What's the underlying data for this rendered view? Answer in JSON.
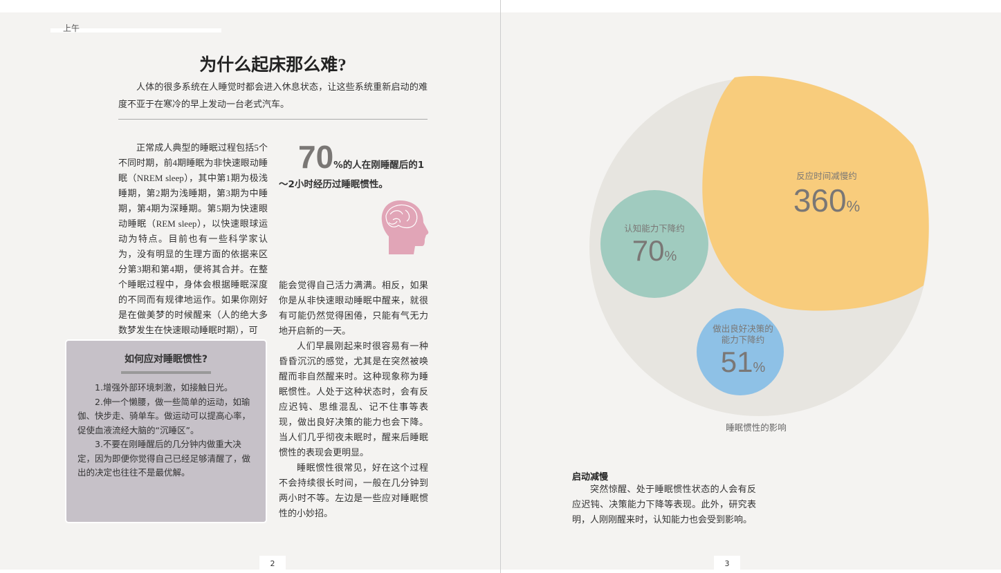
{
  "header": {
    "section": "上午"
  },
  "left_page": {
    "title": "为什么起床那么难?",
    "intro": "人体的很多系统在人睡觉时都会进入休息状态，让这些系统重新启动的难度不亚于在寒冷的早上发动一台老式汽车。",
    "column1": "正常成人典型的睡眠过程包括5个不同时期，前4期睡眠为非快速眼动睡眠（NREM sleep），其中第1期为极浅睡期，第2期为浅睡期，第3期为中睡期，第4期为深睡期。第5期为快速眼动睡眠（REM sleep），以快速眼球运动为特点。目前也有一些科学家认为，没有明显的生理方面的依据来区分第3期和第4期，便将其合并。在整个睡眠过程中，身体会根据睡眠深度的不同而有规律地运作。如果你刚好是在做美梦的时候醒来（人的绝大多数梦发生在快速眼动睡眠时期），可",
    "stat": {
      "number": "70",
      "unit": "%",
      "text": "的人在刚睡醒后的1～2小时经历过睡眠惯性。"
    },
    "column2": [
      "能会觉得自己活力满满。相反，如果你是从非快速眼动睡眠中醒来，就很有可能仍然觉得困倦，只能有气无力地开启新的一天。",
      "人们早晨刚起来时很容易有一种昏昏沉沉的感觉，尤其是在突然被唤醒而非自然醒来时。这种现象称为睡眠惯性。人处于这种状态时，会有反应迟钝、思维混乱、记不住事等表现，做出良好决策的能力也会下降。当人们几乎彻夜未眠时，醒来后睡眠惯性的表现会更明显。",
      "睡眠惯性很常见，好在这个过程不会持续很长时间，一般在几分钟到两小时不等。左边是一些应对睡眠惯性的小妙招。"
    ],
    "tips": {
      "title": "如何应对睡眠惯性?",
      "items": [
        "1.增强外部环境刺激，如接触日光。",
        "2.伸一个懒腰，做一些简单的运动，如瑜伽、快步走、骑单车。做运动可以提高心率，促使血液流经大脑的“沉睡区”。",
        "3.不要在刚睡醒后的几分钟内做重大决定，因为即便你觉得自己已经足够清醒了，做出的决定也往往不是最优解。"
      ]
    },
    "page_number": "2"
  },
  "right_page": {
    "bubbles": [
      {
        "label": "反应时间减慢约",
        "number": "360",
        "unit": "%"
      },
      {
        "label": "认知能力下降约",
        "number": "70",
        "unit": "%"
      },
      {
        "label": "做出良好决策的能力下降约",
        "number": "51",
        "unit": "%"
      }
    ],
    "caption": "睡眠惯性的影响",
    "section_title": "启动减慢",
    "section_text": "突然惊醒、处于睡眠惯性状态的人会有反应迟钝、决策能力下降等表现。此外，研究表明，人刚刚醒来时，认知能力也会受到影响。",
    "page_number": "3"
  }
}
